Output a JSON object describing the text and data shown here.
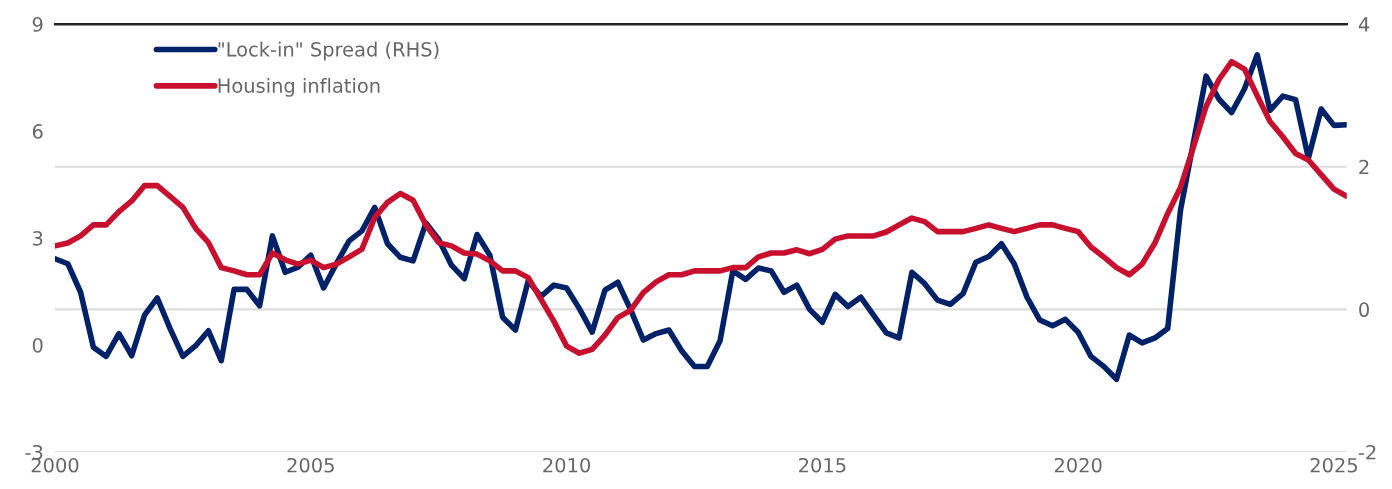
{
  "chart_data": {
    "type": "line",
    "x": [
      2000.0,
      2000.25,
      2000.5,
      2000.75,
      2001.0,
      2001.25,
      2001.5,
      2001.75,
      2002.0,
      2002.25,
      2002.5,
      2002.75,
      2003.0,
      2003.25,
      2003.5,
      2003.75,
      2004.0,
      2004.25,
      2004.5,
      2004.75,
      2005.0,
      2005.25,
      2005.5,
      2005.75,
      2006.0,
      2006.25,
      2006.5,
      2006.75,
      2007.0,
      2007.25,
      2007.5,
      2007.75,
      2008.0,
      2008.25,
      2008.5,
      2008.75,
      2009.0,
      2009.25,
      2009.5,
      2009.75,
      2010.0,
      2010.25,
      2010.5,
      2010.75,
      2011.0,
      2011.25,
      2011.5,
      2011.75,
      2012.0,
      2012.25,
      2012.5,
      2012.75,
      2013.0,
      2013.25,
      2013.5,
      2013.75,
      2014.0,
      2014.25,
      2014.5,
      2014.75,
      2015.0,
      2015.25,
      2015.5,
      2015.75,
      2016.0,
      2016.25,
      2016.5,
      2016.75,
      2017.0,
      2017.25,
      2017.5,
      2017.75,
      2018.0,
      2018.25,
      2018.5,
      2018.75,
      2019.0,
      2019.25,
      2019.5,
      2019.75,
      2020.0,
      2020.25,
      2020.5,
      2020.75,
      2021.0,
      2021.25,
      2021.5,
      2021.75,
      2022.0,
      2022.25,
      2022.5,
      2022.75,
      2023.0,
      2023.25,
      2023.5,
      2023.75,
      2024.0,
      2024.25,
      2024.5,
      2024.75,
      2025.0,
      2025.25
    ],
    "series": [
      {
        "name": "\"Lock-in\" Spread (RHS)",
        "color": "#012169",
        "axis": "y2",
        "values": [
          0.71,
          0.64,
          0.24,
          -0.53,
          -0.66,
          -0.34,
          -0.65,
          -0.08,
          0.16,
          -0.27,
          -0.66,
          -0.51,
          -0.3,
          -0.72,
          0.28,
          0.28,
          0.05,
          1.03,
          0.52,
          0.59,
          0.76,
          0.3,
          0.64,
          0.96,
          1.1,
          1.43,
          0.92,
          0.73,
          0.68,
          1.21,
          0.98,
          0.62,
          0.43,
          1.05,
          0.76,
          -0.11,
          -0.29,
          0.4,
          0.18,
          0.34,
          0.3,
          0.01,
          -0.32,
          0.27,
          0.38,
          0.0,
          -0.43,
          -0.34,
          -0.29,
          -0.58,
          -0.8,
          -0.8,
          -0.44,
          0.54,
          0.42,
          0.58,
          0.54,
          0.24,
          0.34,
          0.0,
          -0.18,
          0.21,
          0.04,
          0.17,
          -0.08,
          -0.33,
          -0.4,
          0.52,
          0.36,
          0.13,
          0.07,
          0.22,
          0.66,
          0.74,
          0.92,
          0.64,
          0.17,
          -0.15,
          -0.23,
          -0.14,
          -0.32,
          -0.66,
          -0.8,
          -0.98,
          -0.36,
          -0.47,
          -0.4,
          -0.27,
          1.39,
          2.33,
          3.27,
          2.95,
          2.76,
          3.09,
          3.57,
          2.79,
          2.99,
          2.94,
          2.12,
          2.81,
          2.58,
          2.59
        ]
      },
      {
        "name": "Housing inflation",
        "color": "#c8102e",
        "values": [
          2.78,
          2.86,
          3.06,
          3.37,
          3.37,
          3.74,
          4.04,
          4.47,
          4.47,
          4.17,
          3.86,
          3.27,
          2.87,
          2.17,
          2.08,
          1.97,
          1.97,
          2.58,
          2.39,
          2.27,
          2.38,
          2.17,
          2.27,
          2.47,
          2.69,
          3.58,
          4.0,
          4.25,
          4.06,
          3.37,
          2.87,
          2.78,
          2.58,
          2.55,
          2.36,
          2.08,
          2.08,
          1.89,
          1.28,
          0.67,
          -0.03,
          -0.23,
          -0.12,
          0.28,
          0.77,
          0.97,
          1.47,
          1.77,
          1.97,
          1.97,
          2.08,
          2.08,
          2.08,
          2.17,
          2.17,
          2.47,
          2.58,
          2.58,
          2.67,
          2.56,
          2.68,
          2.97,
          3.06,
          3.06,
          3.06,
          3.17,
          3.37,
          3.56,
          3.46,
          3.18,
          3.18,
          3.18,
          3.27,
          3.37,
          3.27,
          3.18,
          3.27,
          3.37,
          3.37,
          3.27,
          3.18,
          2.75,
          2.47,
          2.17,
          1.97,
          2.27,
          2.86,
          3.69,
          4.42,
          5.54,
          6.69,
          7.44,
          7.95,
          7.74,
          6.99,
          6.27,
          5.84,
          5.37,
          5.19,
          4.78,
          4.37,
          4.17
        ]
      }
    ],
    "xlim": [
      2000,
      2025.25
    ],
    "xticks": [
      2000,
      2005,
      2010,
      2015,
      2020,
      2025
    ],
    "ylim": [
      -3,
      9
    ],
    "yticks": [
      -3,
      0,
      3,
      6,
      9
    ],
    "y2lim": [
      -2,
      4
    ],
    "y2ticks": [
      -2,
      0,
      2,
      4
    ],
    "grid": "y2",
    "legend": "top left",
    "marker": "none",
    "line_style": "solid"
  }
}
